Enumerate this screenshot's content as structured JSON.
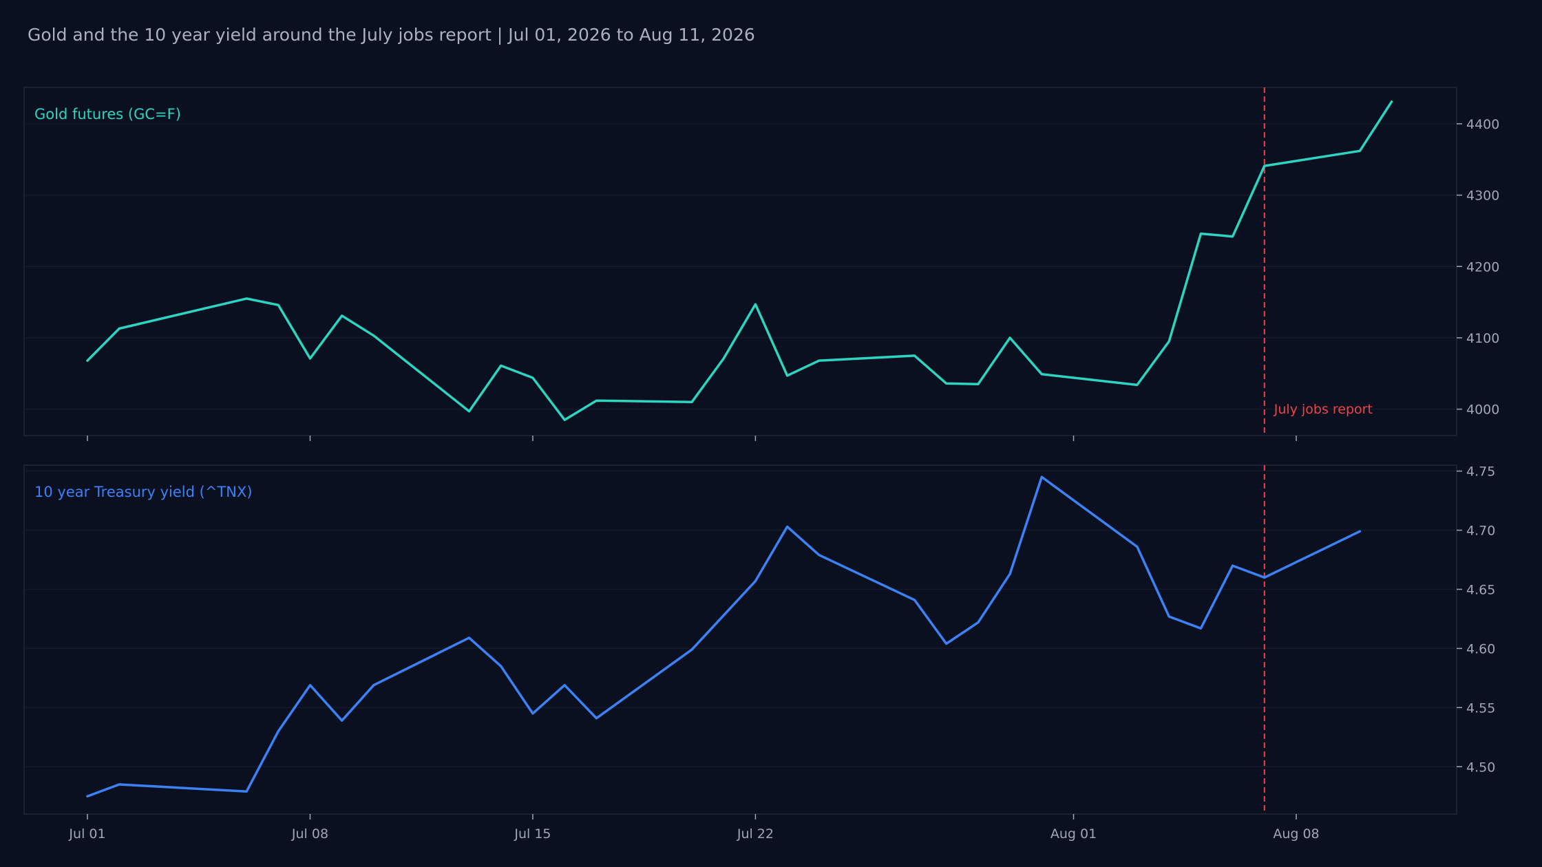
{
  "title": "Gold and the 10 year yield around the July jobs report | Jul 01, 2026 to Aug 11, 2026",
  "colors": {
    "background": "#0b1020",
    "panel_border": "#1c2233",
    "grid": "#141a2a",
    "tick_text": "#a0a6b4",
    "gold_line": "#2dd4bf",
    "yield_line": "#3b82f6",
    "event_line": "#ef4444"
  },
  "chart_data": [
    {
      "type": "line",
      "panel_label": "Gold futures (GC=F)",
      "y_ticks": [
        4000,
        4100,
        4200,
        4300,
        4400
      ],
      "ylim": [
        3963,
        4451
      ],
      "grid": true,
      "series": [
        {
          "name": "Gold futures (GC=F)",
          "points": [
            [
              "2026-07-01",
              4068
            ],
            [
              "2026-07-02",
              4113
            ],
            [
              "2026-07-06",
              4155
            ],
            [
              "2026-07-07",
              4146
            ],
            [
              "2026-07-08",
              4071
            ],
            [
              "2026-07-09",
              4131
            ],
            [
              "2026-07-10",
              4103
            ],
            [
              "2026-07-13",
              3997
            ],
            [
              "2026-07-14",
              4061
            ],
            [
              "2026-07-15",
              4044
            ],
            [
              "2026-07-16",
              3985
            ],
            [
              "2026-07-17",
              4012
            ],
            [
              "2026-07-20",
              4010
            ],
            [
              "2026-07-21",
              4071
            ],
            [
              "2026-07-22",
              4147
            ],
            [
              "2026-07-23",
              4047
            ],
            [
              "2026-07-24",
              4068
            ],
            [
              "2026-07-27",
              4075
            ],
            [
              "2026-07-28",
              4036
            ],
            [
              "2026-07-29",
              4035
            ],
            [
              "2026-07-30",
              4100
            ],
            [
              "2026-07-31",
              4049
            ],
            [
              "2026-08-03",
              4034
            ],
            [
              "2026-08-04",
              4095
            ],
            [
              "2026-08-05",
              4246
            ],
            [
              "2026-08-06",
              4242
            ],
            [
              "2026-08-07",
              4341
            ],
            [
              "2026-08-10",
              4362
            ],
            [
              "2026-08-11",
              4431
            ]
          ]
        }
      ]
    },
    {
      "type": "line",
      "panel_label": "10 year Treasury yield (^TNX)",
      "y_ticks": [
        4.5,
        4.55,
        4.6,
        4.65,
        4.7,
        4.75
      ],
      "y_tick_labels": [
        "4.50",
        "4.55",
        "4.60",
        "4.65",
        "4.70",
        "4.75"
      ],
      "ylim": [
        4.46,
        4.755
      ],
      "grid": true,
      "series": [
        {
          "name": "10 year Treasury yield (^TNX)",
          "points": [
            [
              "2026-07-01",
              4.475
            ],
            [
              "2026-07-02",
              4.485
            ],
            [
              "2026-07-06",
              4.479
            ],
            [
              "2026-07-07",
              4.53
            ],
            [
              "2026-07-08",
              4.569
            ],
            [
              "2026-07-09",
              4.539
            ],
            [
              "2026-07-10",
              4.569
            ],
            [
              "2026-07-13",
              4.609
            ],
            [
              "2026-07-14",
              4.585
            ],
            [
              "2026-07-15",
              4.545
            ],
            [
              "2026-07-16",
              4.569
            ],
            [
              "2026-07-17",
              4.541
            ],
            [
              "2026-07-20",
              4.599
            ],
            [
              "2026-07-21",
              4.628
            ],
            [
              "2026-07-22",
              4.657
            ],
            [
              "2026-07-23",
              4.703
            ],
            [
              "2026-07-24",
              4.679
            ],
            [
              "2026-07-27",
              4.641
            ],
            [
              "2026-07-28",
              4.604
            ],
            [
              "2026-07-29",
              4.622
            ],
            [
              "2026-07-30",
              4.663
            ],
            [
              "2026-07-31",
              4.745
            ],
            [
              "2026-08-03",
              4.686
            ],
            [
              "2026-08-04",
              4.627
            ],
            [
              "2026-08-05",
              4.617
            ],
            [
              "2026-08-06",
              4.67
            ],
            [
              "2026-08-07",
              4.66
            ],
            [
              "2026-08-10",
              4.699
            ]
          ]
        }
      ]
    }
  ],
  "x_axis": {
    "range": [
      "2026-06-29",
      "2026-08-14"
    ],
    "ticks": [
      {
        "date": "2026-07-01",
        "label": "Jul 01"
      },
      {
        "date": "2026-07-08",
        "label": "Jul 08"
      },
      {
        "date": "2026-07-15",
        "label": "Jul 15"
      },
      {
        "date": "2026-07-22",
        "label": "Jul 22"
      },
      {
        "date": "2026-08-01",
        "label": "Aug 01"
      },
      {
        "date": "2026-08-08",
        "label": "Aug 08"
      }
    ]
  },
  "event": {
    "date": "2026-08-07",
    "label": "July jobs report",
    "style": "dashed vertical line"
  }
}
